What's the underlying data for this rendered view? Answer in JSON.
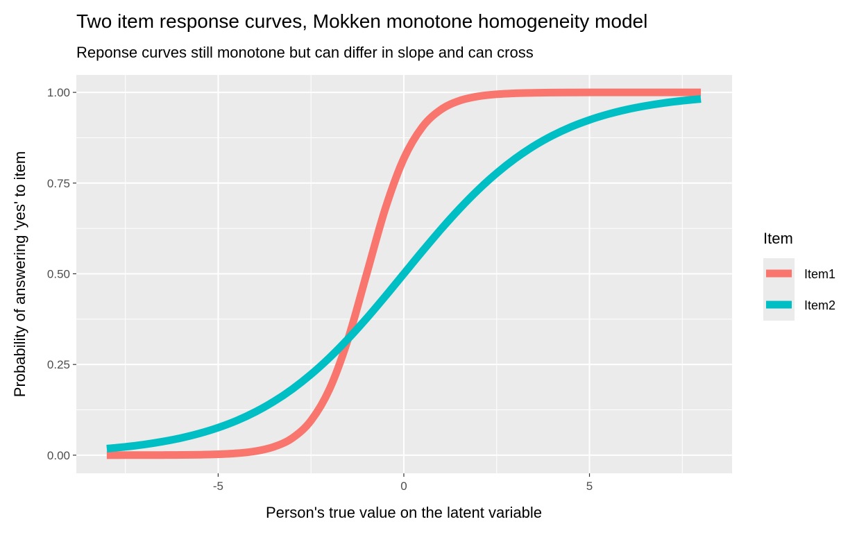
{
  "chart_data": {
    "type": "line",
    "title": "Two item response curves, Mokken monotone homogeneity model",
    "subtitle": "Reponse curves still monotone but can differ in slope and can cross",
    "xlabel": "Person's true value on the latent variable",
    "ylabel": "Probability of answering 'yes' to item",
    "xlim": [
      -8.82,
      8.84
    ],
    "ylim": [
      -0.05,
      1.048
    ],
    "x_ticks": [
      -5,
      0,
      5
    ],
    "x_tick_labels": [
      "-5",
      "0",
      "5"
    ],
    "y_ticks": [
      0,
      0.25,
      0.5,
      0.75,
      1
    ],
    "y_tick_labels": [
      "0.00",
      "0.25",
      "0.50",
      "0.75",
      "1.00"
    ],
    "grid": true,
    "legend": {
      "title": "Item",
      "placement": "right"
    },
    "x": [
      -8,
      -7.5,
      -7,
      -6.5,
      -6,
      -5.5,
      -5,
      -4.5,
      -4,
      -3.5,
      -3,
      -2.5,
      -2,
      -1.5,
      -1,
      -0.5,
      0,
      0.5,
      1,
      1.5,
      2,
      2.5,
      3,
      3.5,
      4,
      4.5,
      5,
      5.5,
      6,
      6.5,
      7,
      7.5,
      8
    ],
    "series": [
      {
        "name": "Item1",
        "color": "#F8766D",
        "values": [
          0.0,
          0.0001,
          0.0001,
          0.0003,
          0.0006,
          0.0012,
          0.0025,
          0.0052,
          0.011,
          0.023,
          0.0474,
          0.0953,
          0.1824,
          0.3208,
          0.5,
          0.6792,
          0.8176,
          0.9047,
          0.9526,
          0.977,
          0.989,
          0.9948,
          0.9975,
          0.9988,
          0.9994,
          0.9997,
          0.9999,
          0.9999,
          0.9999,
          1.0,
          1.0,
          1.0,
          1.0
        ]
      },
      {
        "name": "Item2",
        "color": "#00BFC4",
        "values": [
          0.018,
          0.023,
          0.0293,
          0.0374,
          0.0474,
          0.0601,
          0.0759,
          0.0953,
          0.1192,
          0.148,
          0.1824,
          0.2227,
          0.2689,
          0.3208,
          0.3775,
          0.4378,
          0.5,
          0.5622,
          0.6225,
          0.6792,
          0.7311,
          0.7773,
          0.8176,
          0.852,
          0.8808,
          0.9047,
          0.9241,
          0.9399,
          0.9526,
          0.9626,
          0.9707,
          0.977,
          0.982
        ]
      }
    ]
  }
}
